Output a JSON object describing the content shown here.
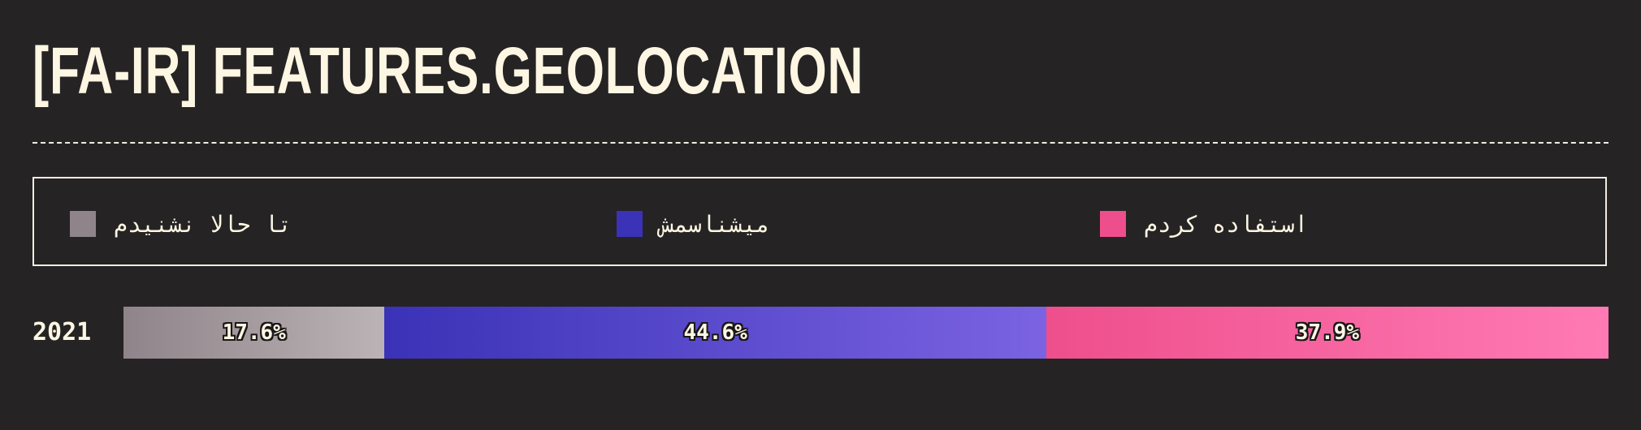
{
  "header": {
    "title": "[FA-IR] FEATURES.GEOLOCATION"
  },
  "legend": {
    "items": [
      {
        "label": "تا حالا نشنیدم",
        "color": "#8f8489"
      },
      {
        "label": "میشناسمش",
        "color": "#3a32b7"
      },
      {
        "label": "استفاده کردم",
        "color": "#ee4f8c"
      }
    ]
  },
  "chart_data": {
    "type": "bar",
    "orientation": "horizontal",
    "stacked": true,
    "normalized": true,
    "categories": [
      "2021"
    ],
    "series": [
      {
        "name": "تا حالا نشنیدم",
        "values": [
          17.6
        ],
        "label": "17.6%",
        "color_start": "#8f8489",
        "color_end": "#bbb3b6"
      },
      {
        "name": "میشناسمش",
        "values": [
          44.6
        ],
        "label": "44.6%",
        "color_start": "#3a32b7",
        "color_end": "#7b63e2"
      },
      {
        "name": "استفاده کردم",
        "values": [
          37.9
        ],
        "label": "37.9%",
        "color_start": "#ee4f8c",
        "color_end": "#ff7ab4"
      }
    ],
    "legend": "top"
  }
}
